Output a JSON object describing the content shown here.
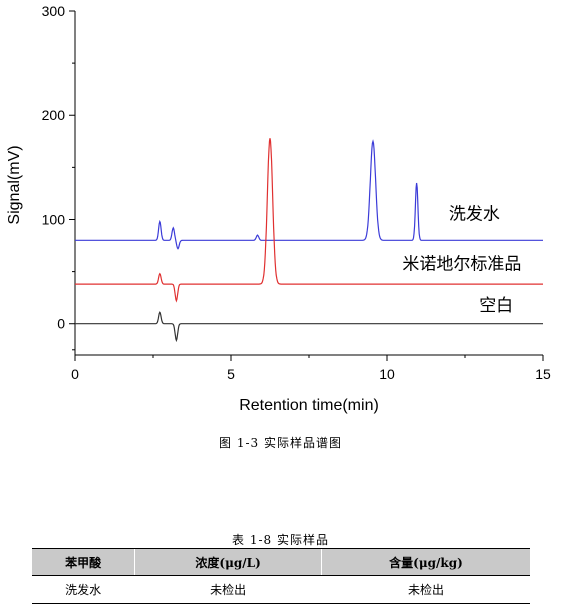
{
  "chart_data": {
    "type": "line",
    "xlabel": "Retention time(min)",
    "ylabel": "Signal(mV)",
    "xlim": [
      0,
      15
    ],
    "ylim": [
      -30,
      300
    ],
    "x_ticks": [
      0,
      5,
      10,
      15
    ],
    "y_ticks": [
      0,
      100,
      200,
      300
    ],
    "grid": false,
    "series": [
      {
        "name": "洗发水",
        "color": "#3b3bd8",
        "baseline": 80,
        "peaks": [
          {
            "x": 2.72,
            "y": 98
          },
          {
            "x": 3.15,
            "y": 92
          },
          {
            "x": 3.3,
            "y": 72
          },
          {
            "x": 5.85,
            "y": 85
          },
          {
            "x": 9.55,
            "y": 175
          },
          {
            "x": 10.95,
            "y": 135
          }
        ]
      },
      {
        "name": "米诺地尔标准品",
        "color": "#e03030",
        "baseline": 38,
        "peaks": [
          {
            "x": 2.72,
            "y": 48
          },
          {
            "x": 3.25,
            "y": 22
          },
          {
            "x": 6.25,
            "y": 178
          }
        ]
      },
      {
        "name": "空白",
        "color": "#333333",
        "baseline": 0,
        "peaks": [
          {
            "x": 2.72,
            "y": 11
          },
          {
            "x": 3.25,
            "y": -16
          }
        ]
      }
    ]
  },
  "figure_caption": "图 1-3    实际样品谱图",
  "table": {
    "caption": "表 1-8    实际样品",
    "headers": [
      "苯甲酸",
      "浓度(μg/L)",
      "含量(μg/kg)"
    ],
    "rows": [
      [
        "洗发水",
        "未检出",
        "未检出"
      ]
    ]
  }
}
